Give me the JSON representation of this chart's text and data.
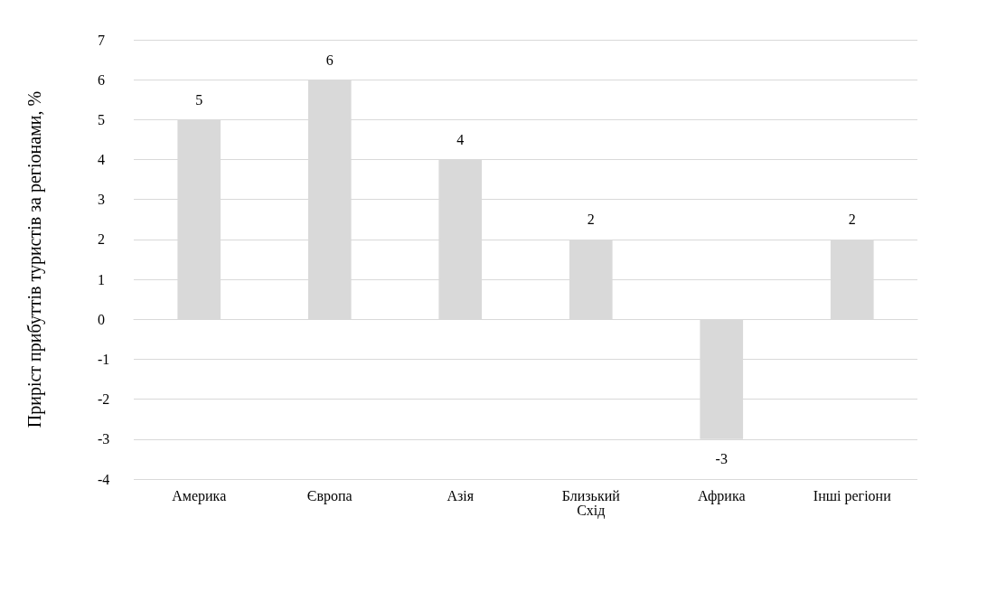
{
  "chart_data": {
    "type": "bar",
    "ylabel": "Приріст прибуттів туристів за регіонами, %",
    "categories": [
      "Америка",
      "Європа",
      "Азія",
      "Близький\nСхід",
      "Африка",
      "Інші регіони"
    ],
    "values": [
      5,
      6,
      4,
      2,
      -3,
      2
    ],
    "color": "#d9d9d9",
    "ylim": [
      -4,
      7
    ],
    "yticks": [
      -4,
      -3,
      -2,
      -1,
      0,
      1,
      2,
      3,
      4,
      5,
      6,
      7
    ],
    "grid": "y",
    "data_labels": true
  }
}
